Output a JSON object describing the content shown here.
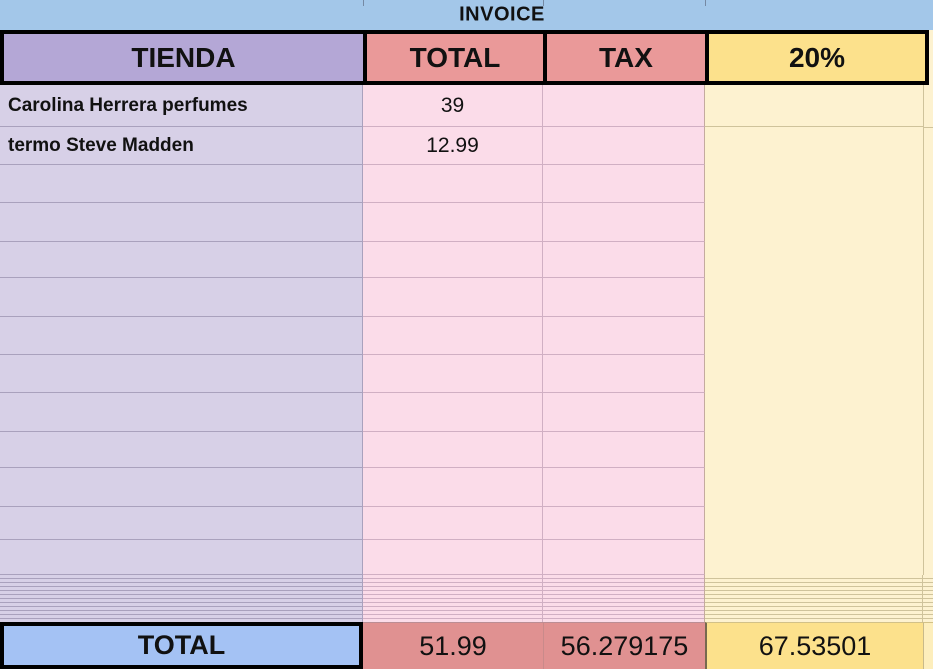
{
  "band": {
    "title": "INVOICE"
  },
  "header": {
    "tienda": "TIENDA",
    "total": "TOTAL",
    "tax": "TAX",
    "pct": "20%"
  },
  "items": [
    {
      "tienda": "Carolina Herrera perfumes",
      "total": "39",
      "tax": "",
      "pct": ""
    },
    {
      "tienda": "termo Steve Madden",
      "total": "12.99",
      "tax": "",
      "pct": ""
    },
    {
      "tienda": "",
      "total": "",
      "tax": "",
      "pct": ""
    },
    {
      "tienda": "",
      "total": "",
      "tax": "",
      "pct": ""
    },
    {
      "tienda": "",
      "total": "",
      "tax": "",
      "pct": ""
    },
    {
      "tienda": "",
      "total": "",
      "tax": "",
      "pct": ""
    },
    {
      "tienda": "",
      "total": "",
      "tax": "",
      "pct": ""
    },
    {
      "tienda": "",
      "total": "",
      "tax": "",
      "pct": ""
    },
    {
      "tienda": "",
      "total": "",
      "tax": "",
      "pct": ""
    },
    {
      "tienda": "",
      "total": "",
      "tax": "",
      "pct": ""
    },
    {
      "tienda": "",
      "total": "",
      "tax": "",
      "pct": ""
    },
    {
      "tienda": "",
      "total": "",
      "tax": "",
      "pct": ""
    },
    {
      "tienda": "",
      "total": "",
      "tax": "",
      "pct": ""
    }
  ],
  "totals": {
    "label": "TOTAL",
    "total": "51.99",
    "tax": "56.279175",
    "pct": "67.53501"
  },
  "colors": {
    "band_blue": "#a3c7e9",
    "header_purple": "#b4a7d6",
    "header_red": "#ea9999",
    "header_yellow": "#fce18c",
    "row_purple": "#d7d0e7",
    "row_pink": "#fbdce9",
    "row_yellow": "#fdf2d0",
    "total_blue": "#a4c2f4",
    "total_red": "#e09191",
    "total_yellow": "#fce18c",
    "border_black": "#000000"
  }
}
